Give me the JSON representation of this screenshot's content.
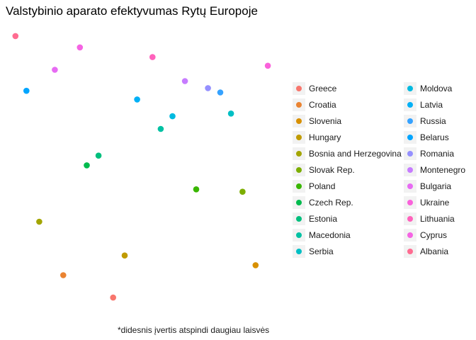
{
  "chart_data": {
    "type": "scatter",
    "title": "Valstybinio aparato efektyvumas Rytų Europoje",
    "caption": "*didesnis įvertis atspindi daugiau laisvės",
    "xlabel": "",
    "ylabel": "",
    "grid": false,
    "legend_position": "right",
    "points": [
      {
        "name": "Greece",
        "color": "#F8766D",
        "x": 0.387,
        "y": 0.026
      },
      {
        "name": "Croatia",
        "color": "#EA8331",
        "x": 0.192,
        "y": 0.109
      },
      {
        "name": "Slovenia",
        "color": "#D89000",
        "x": 0.944,
        "y": 0.146
      },
      {
        "name": "Hungary",
        "color": "#C09B00",
        "x": 0.432,
        "y": 0.182
      },
      {
        "name": "Bosnia and Herzegovina",
        "color": "#A3A500",
        "x": 0.098,
        "y": 0.307
      },
      {
        "name": "Slovak Rep.",
        "color": "#7CAE00",
        "x": 0.893,
        "y": 0.418
      },
      {
        "name": "Poland",
        "color": "#39B600",
        "x": 0.712,
        "y": 0.427
      },
      {
        "name": "Czech Rep.",
        "color": "#00BB4E",
        "x": 0.284,
        "y": 0.516
      },
      {
        "name": "Estonia",
        "color": "#00BF7D",
        "x": 0.33,
        "y": 0.552
      },
      {
        "name": "Macedonia",
        "color": "#00C1A3",
        "x": 0.573,
        "y": 0.651
      },
      {
        "name": "Serbia",
        "color": "#00BFC4",
        "x": 0.848,
        "y": 0.708
      },
      {
        "name": "Moldova",
        "color": "#00BAE0",
        "x": 0.619,
        "y": 0.698
      },
      {
        "name": "Latvia",
        "color": "#00B0F6",
        "x": 0.481,
        "y": 0.76
      },
      {
        "name": "Russia",
        "color": "#35A2FF",
        "x": 0.806,
        "y": 0.786
      },
      {
        "name": "Belarus",
        "color": "#00A5FF",
        "x": 0.048,
        "y": 0.792
      },
      {
        "name": "Romania",
        "color": "#9590FF",
        "x": 0.758,
        "y": 0.802
      },
      {
        "name": "Montenegro",
        "color": "#C77CFF",
        "x": 0.668,
        "y": 0.828
      },
      {
        "name": "Bulgaria",
        "color": "#E76BF3",
        "x": 0.159,
        "y": 0.87
      },
      {
        "name": "Ukraine",
        "color": "#FA62DB",
        "x": 0.992,
        "y": 0.885
      },
      {
        "name": "Lithuania",
        "color": "#FF62BC",
        "x": 0.541,
        "y": 0.917
      },
      {
        "name": "Cyprus",
        "color": "#F564E3",
        "x": 0.257,
        "y": 0.953
      },
      {
        "name": "Albania",
        "color": "#FF6C91",
        "x": 0.005,
        "y": 0.995
      }
    ],
    "legend_columns": [
      [
        "Greece",
        "Croatia",
        "Slovenia",
        "Hungary",
        "Bosnia and Herzegovina",
        "Slovak Rep.",
        "Poland",
        "Czech Rep.",
        "Estonia",
        "Macedonia",
        "Serbia"
      ],
      [
        "Moldova",
        "Latvia",
        "Russia",
        "Belarus",
        "Romania",
        "Montenegro",
        "Bulgaria",
        "Ukraine",
        "Lithuania",
        "Cyprus",
        "Albania"
      ]
    ]
  }
}
